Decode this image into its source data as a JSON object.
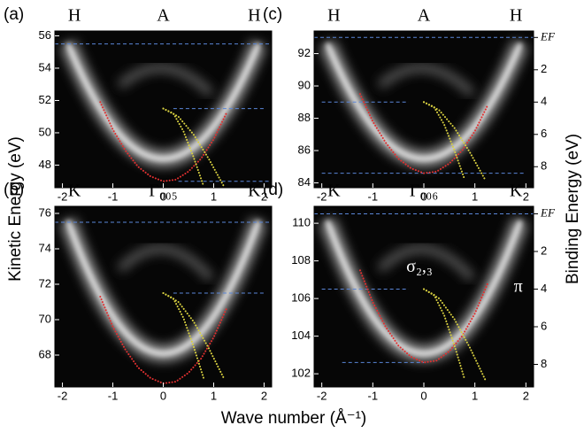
{
  "ylabel": "Kinetic Energy (eV)",
  "y2label": "Binding Energy (eV)",
  "xlabel": "Wave number (Å⁻¹)",
  "chart_data": [
    {
      "type": "line",
      "panel": "(a)",
      "points": [
        "H",
        "A",
        "H"
      ],
      "xlim": [
        -2.15,
        2.15
      ],
      "xticks": [
        -2,
        -1,
        0,
        1,
        2
      ],
      "ylim": [
        46.6,
        56.3
      ],
      "yticks": [
        48,
        50,
        52,
        54,
        56
      ],
      "series": [
        {
          "color": "#e03030",
          "x": [
            -1.25,
            -1,
            -0.75,
            -0.5,
            -0.25,
            0,
            0.25,
            0.5,
            0.75,
            1,
            1.25
          ],
          "values": [
            51.9,
            50.2,
            48.9,
            47.9,
            47.3,
            47.0,
            47.1,
            47.6,
            48.4,
            49.6,
            51.2
          ]
        },
        {
          "color": "#d8d040",
          "x": [
            0,
            0.2,
            0.4,
            0.6,
            0.8
          ],
          "values": [
            51.5,
            51.2,
            50.1,
            48.5,
            46.7
          ]
        },
        {
          "color": "#d8d040",
          "x": [
            0,
            0.3,
            0.6,
            0.9,
            1.2
          ],
          "values": [
            51.5,
            51.0,
            49.9,
            48.4,
            46.7
          ]
        }
      ],
      "hlines": [
        {
          "y": 55.5,
          "x": [
            -2.15,
            2.15
          ]
        },
        {
          "y": 51.5,
          "x": [
            0.2,
            2.0
          ]
        },
        {
          "y": 47.0,
          "x": [
            0.3,
            2.1
          ]
        }
      ]
    },
    {
      "type": "line",
      "panel": "(b)",
      "points": [
        "K",
        "Γ₀₀₅",
        "K"
      ],
      "xlim": [
        -2.15,
        2.15
      ],
      "xticks": [
        -2,
        -1,
        0,
        1,
        2
      ],
      "ylim": [
        66.2,
        76.4
      ],
      "yticks": [
        68,
        70,
        72,
        74,
        76
      ],
      "series": [
        {
          "color": "#e03030",
          "x": [
            -1.25,
            -1,
            -0.75,
            -0.5,
            -0.25,
            0,
            0.25,
            0.5,
            0.75,
            1,
            1.25
          ],
          "values": [
            71.3,
            69.6,
            68.3,
            67.3,
            66.7,
            66.4,
            66.5,
            67.0,
            67.8,
            69.0,
            70.6
          ]
        },
        {
          "color": "#d8d040",
          "x": [
            0,
            0.2,
            0.4,
            0.6,
            0.8
          ],
          "values": [
            71.5,
            71.2,
            70.1,
            68.5,
            66.7
          ]
        },
        {
          "color": "#d8d040",
          "x": [
            0,
            0.3,
            0.6,
            0.9,
            1.2
          ],
          "values": [
            71.5,
            71.0,
            69.9,
            68.4,
            66.7
          ]
        }
      ],
      "hlines": [
        {
          "y": 75.5,
          "x": [
            -2.15,
            2.15
          ]
        },
        {
          "y": 71.5,
          "x": [
            0.2,
            2.0
          ]
        }
      ]
    },
    {
      "type": "line",
      "panel": "(c)",
      "points": [
        "H",
        "A",
        "H"
      ],
      "xlim": [
        -2.15,
        2.15
      ],
      "xticks": [
        -2,
        -1,
        0,
        1,
        2
      ],
      "ylim": [
        83.7,
        93.4
      ],
      "yticks": [
        84,
        86,
        88,
        90,
        92
      ],
      "y2lim": [
        9.3,
        -0.4
      ],
      "y2ticks": [
        {
          "value": 0,
          "label": "EF"
        },
        2,
        4,
        6,
        8
      ],
      "series": [
        {
          "color": "#e03030",
          "x": [
            -1.25,
            -1,
            -0.75,
            -0.5,
            -0.25,
            0,
            0.25,
            0.5,
            0.75,
            1,
            1.25
          ],
          "values": [
            89.5,
            87.8,
            86.5,
            85.5,
            84.9,
            84.6,
            84.7,
            85.2,
            86.0,
            87.2,
            88.8
          ]
        },
        {
          "color": "#d8d040",
          "x": [
            0,
            0.2,
            0.4,
            0.6,
            0.8
          ],
          "values": [
            89.0,
            88.7,
            87.6,
            86.0,
            84.2
          ]
        },
        {
          "color": "#d8d040",
          "x": [
            0,
            0.3,
            0.6,
            0.9,
            1.2
          ],
          "values": [
            89.0,
            88.5,
            87.4,
            85.9,
            84.2
          ]
        }
      ],
      "hlines": [
        {
          "y": 93.0,
          "x": [
            -2.15,
            2.15
          ]
        },
        {
          "y": 89.0,
          "x": [
            -2.0,
            -0.3
          ]
        },
        {
          "y": 84.6,
          "x": [
            -2.0,
            2.0
          ]
        }
      ]
    },
    {
      "type": "line",
      "panel": "(d)",
      "points": [
        "K",
        "Γ₀₀₆",
        "K"
      ],
      "xlim": [
        -2.15,
        2.15
      ],
      "xticks": [
        -2,
        -1,
        0,
        1,
        2
      ],
      "ylim": [
        101.3,
        110.9
      ],
      "yticks": [
        102,
        104,
        106,
        108,
        110
      ],
      "y2lim": [
        9.2,
        -0.4
      ],
      "y2ticks": [
        {
          "value": 0,
          "label": "EF"
        },
        2,
        4,
        6,
        8
      ],
      "annotations": [
        "σ₂,₃",
        "π"
      ],
      "series": [
        {
          "color": "#e03030",
          "x": [
            -1.25,
            -1,
            -0.75,
            -0.5,
            -0.25,
            0,
            0.25,
            0.5,
            0.75,
            1,
            1.25
          ],
          "values": [
            107.5,
            105.8,
            104.5,
            103.5,
            102.9,
            102.6,
            102.7,
            103.2,
            104.0,
            105.2,
            106.8
          ]
        },
        {
          "color": "#d8d040",
          "x": [
            0,
            0.2,
            0.4,
            0.6,
            0.8
          ],
          "values": [
            106.5,
            106.2,
            105.1,
            103.5,
            101.7
          ]
        },
        {
          "color": "#d8d040",
          "x": [
            0,
            0.3,
            0.6,
            0.9,
            1.2
          ],
          "values": [
            106.5,
            106.0,
            104.9,
            103.4,
            101.7
          ]
        }
      ],
      "hlines": [
        {
          "y": 110.5,
          "x": [
            -2.15,
            2.15
          ]
        },
        {
          "y": 106.5,
          "x": [
            -2.0,
            -0.3
          ]
        },
        {
          "y": 102.6,
          "x": [
            -1.6,
            0.0
          ]
        }
      ]
    }
  ]
}
